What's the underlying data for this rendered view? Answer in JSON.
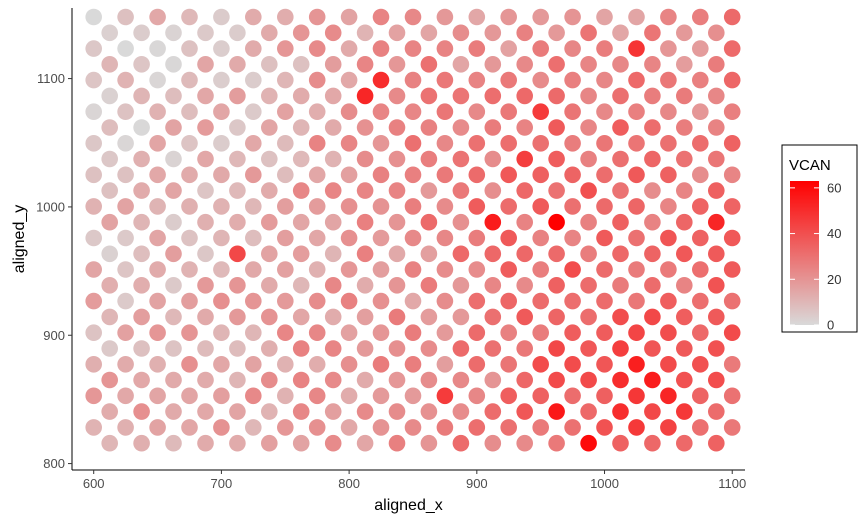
{
  "chart_data": {
    "type": "scatter",
    "xlabel": "aligned_x",
    "ylabel": "aligned_y",
    "xlim": [
      583,
      1110
    ],
    "ylim": [
      795,
      1155
    ],
    "x_ticks": [
      600,
      700,
      800,
      900,
      1000,
      1100
    ],
    "y_ticks": [
      800,
      900,
      1000,
      1100
    ],
    "x_tick_labels": [
      "600",
      "700",
      "800",
      "900",
      "1000",
      "1100"
    ],
    "y_tick_labels": [
      "800",
      "900",
      "1000",
      "1100"
    ],
    "grid": false,
    "legend": {
      "title": "VCAN",
      "position": "right",
      "range": [
        0,
        63
      ],
      "ticks": [
        0,
        20,
        40,
        60
      ],
      "tick_labels": [
        "0",
        "20",
        "40",
        "60"
      ],
      "low_color": "#d9d9d9",
      "high_color": "#ff0000"
    },
    "spot_grid": {
      "x_start": 600,
      "x_end": 1100,
      "x_step": 25,
      "row_offset": 12.5,
      "y_top": 1148,
      "y_step": 12.3,
      "rows": 28
    },
    "highlights": [
      {
        "x": 1085,
        "y": 1102,
        "value": 55
      },
      {
        "x": 810,
        "y": 1090,
        "value": 52
      },
      {
        "x": 817,
        "y": 1102,
        "value": 50
      },
      {
        "x": 947,
        "y": 1073,
        "value": 46
      },
      {
        "x": 1022,
        "y": 1122,
        "value": 48
      },
      {
        "x": 935,
        "y": 1033,
        "value": 45
      },
      {
        "x": 960,
        "y": 1020,
        "value": 47
      },
      {
        "x": 972,
        "y": 1060,
        "value": 44
      },
      {
        "x": 1097,
        "y": 1016,
        "value": 55
      },
      {
        "x": 910,
        "y": 985,
        "value": 55
      },
      {
        "x": 962,
        "y": 985,
        "value": 63
      },
      {
        "x": 960,
        "y": 997,
        "value": 48
      },
      {
        "x": 1085,
        "y": 985,
        "value": 52
      },
      {
        "x": 987,
        "y": 882,
        "value": 56
      },
      {
        "x": 1022,
        "y": 882,
        "value": 54
      },
      {
        "x": 1035,
        "y": 868,
        "value": 55
      },
      {
        "x": 1010,
        "y": 868,
        "value": 50
      },
      {
        "x": 1047,
        "y": 855,
        "value": 52
      },
      {
        "x": 960,
        "y": 843,
        "value": 56
      },
      {
        "x": 1010,
        "y": 843,
        "value": 50
      },
      {
        "x": 987,
        "y": 822,
        "value": 60
      },
      {
        "x": 860,
        "y": 828,
        "value": 50
      },
      {
        "x": 872,
        "y": 855,
        "value": 46
      },
      {
        "x": 1098,
        "y": 895,
        "value": 45
      },
      {
        "x": 710,
        "y": 958,
        "value": 42
      }
    ]
  }
}
